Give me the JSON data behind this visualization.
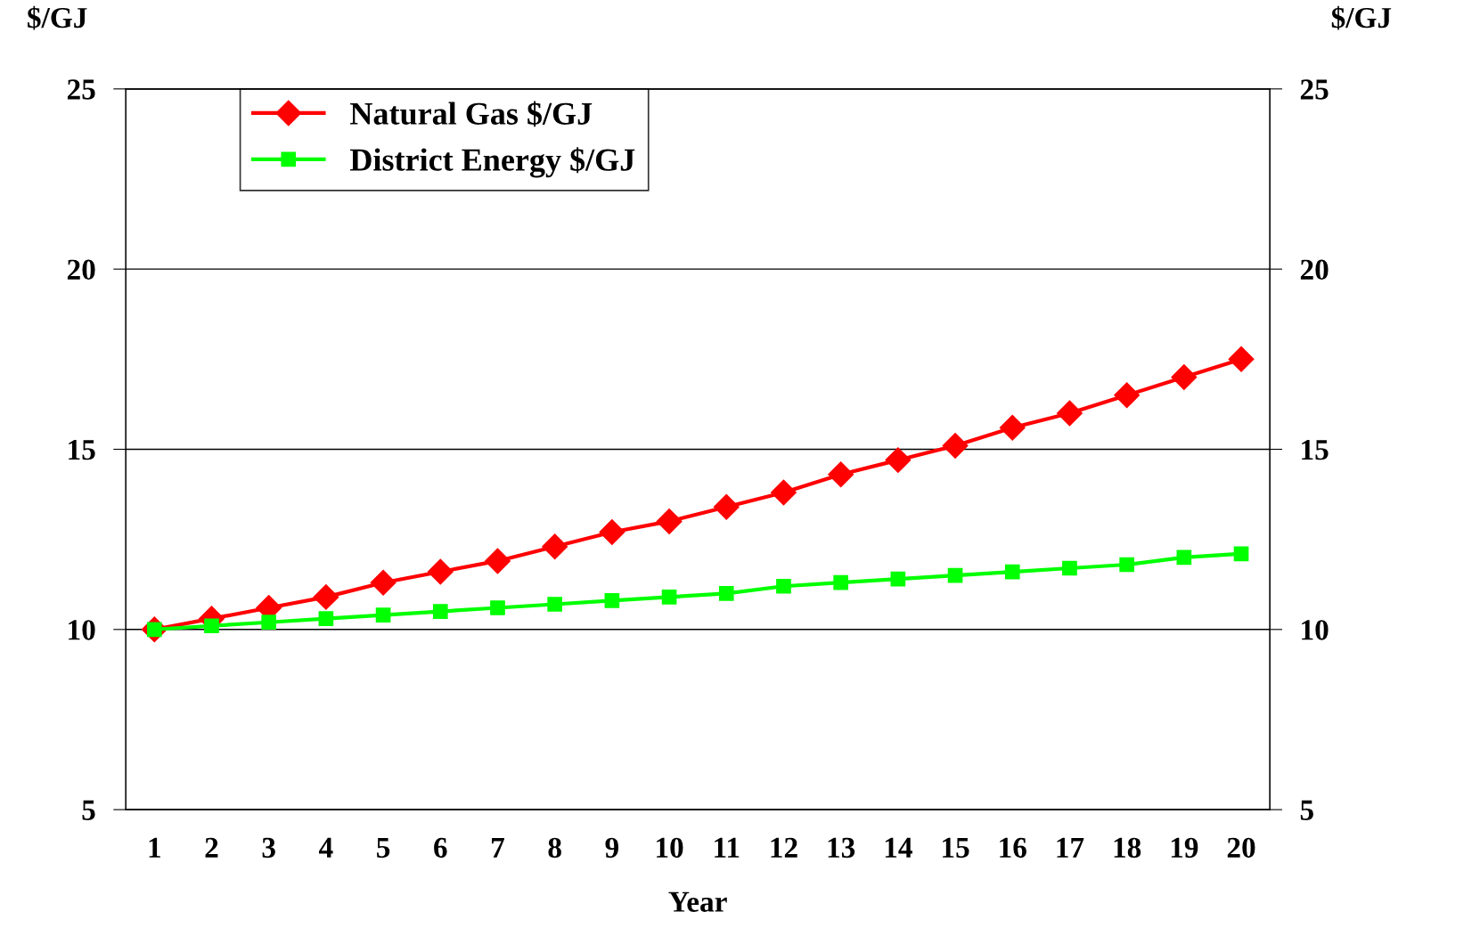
{
  "chart_data": {
    "type": "line",
    "xlabel": "Year",
    "ylabel": "$/GJ",
    "y2label": "$/GJ",
    "categories": [
      "1",
      "2",
      "3",
      "4",
      "5",
      "6",
      "7",
      "8",
      "9",
      "10",
      "11",
      "12",
      "13",
      "14",
      "15",
      "16",
      "17",
      "18",
      "19",
      "20"
    ],
    "series": [
      {
        "name": "Natural Gas $/GJ",
        "color": "#ff0000",
        "marker": "diamond",
        "values": [
          10.0,
          10.3,
          10.6,
          10.9,
          11.3,
          11.6,
          11.9,
          12.3,
          12.7,
          13.0,
          13.4,
          13.8,
          14.3,
          14.7,
          15.1,
          15.6,
          16.0,
          16.5,
          17.0,
          17.5
        ]
      },
      {
        "name": "District Energy $/GJ",
        "color": "#00ff00",
        "marker": "square",
        "values": [
          10.0,
          10.1,
          10.2,
          10.3,
          10.4,
          10.5,
          10.6,
          10.7,
          10.8,
          10.9,
          11.0,
          11.2,
          11.3,
          11.4,
          11.5,
          11.6,
          11.7,
          11.8,
          12.0,
          12.1
        ]
      }
    ],
    "ylim": [
      5,
      25
    ],
    "yticks": [
      5,
      10,
      15,
      20,
      25
    ],
    "y2lim": [
      5,
      25
    ],
    "y2ticks": [
      5,
      10,
      15,
      20,
      25
    ],
    "grid": "y",
    "legend": "top left",
    "line_style": "solid"
  }
}
